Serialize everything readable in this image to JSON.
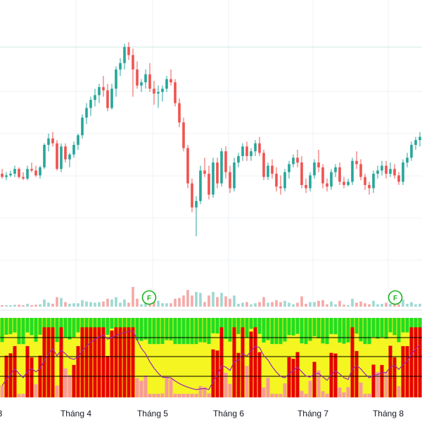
{
  "colors": {
    "up": "#26a69a",
    "down": "#ef5350",
    "up_volume": "#9ed8d2",
    "down_volume": "#f5a9a7",
    "grid": "#eef1f5",
    "marker": "#19b31f",
    "osc_green": "#22dd22",
    "osc_yellow": "#f5f522",
    "osc_red": "#e60000",
    "osc_pink": "#f79a9a",
    "osc_line": "#9b27b0",
    "axis_text": "#131722"
  },
  "x_axis": {
    "labels": [
      "3",
      "Tháng 4",
      "Tháng 5",
      "Tháng 6",
      "Tháng 7",
      "Tháng 8"
    ]
  },
  "markers": {
    "label": "F"
  },
  "chart_data": {
    "type": "candlestick",
    "note_units": "relative price levels (no price axis visible)",
    "candles": [
      [
        69,
        72,
        66,
        67
      ],
      [
        67,
        70,
        65,
        68
      ],
      [
        68,
        71,
        67,
        69
      ],
      [
        69,
        74,
        67,
        72
      ],
      [
        72,
        73,
        66,
        67
      ],
      [
        67,
        70,
        65,
        66
      ],
      [
        66,
        74,
        65,
        72
      ],
      [
        72,
        76,
        70,
        71
      ],
      [
        71,
        74,
        67,
        68
      ],
      [
        68,
        74,
        66,
        73
      ],
      [
        73,
        88,
        72,
        87
      ],
      [
        87,
        94,
        83,
        91
      ],
      [
        91,
        95,
        86,
        88
      ],
      [
        88,
        90,
        71,
        72
      ],
      [
        72,
        88,
        70,
        86
      ],
      [
        86,
        88,
        76,
        78
      ],
      [
        78,
        82,
        73,
        81
      ],
      [
        81,
        89,
        79,
        87
      ],
      [
        87,
        94,
        84,
        93
      ],
      [
        93,
        106,
        91,
        104
      ],
      [
        104,
        113,
        100,
        110
      ],
      [
        110,
        117,
        105,
        115
      ],
      [
        115,
        122,
        111,
        118
      ],
      [
        118,
        125,
        113,
        123
      ],
      [
        123,
        130,
        117,
        121
      ],
      [
        121,
        125,
        108,
        110
      ],
      [
        110,
        125,
        109,
        122
      ],
      [
        122,
        136,
        117,
        134
      ],
      [
        134,
        141,
        130,
        138
      ],
      [
        138,
        150,
        134,
        148
      ],
      [
        148,
        151,
        140,
        143
      ],
      [
        143,
        147,
        117,
        134
      ],
      [
        134,
        139,
        122,
        124
      ],
      [
        124,
        128,
        120,
        126
      ],
      [
        126,
        134,
        122,
        131
      ],
      [
        131,
        138,
        120,
        122
      ],
      [
        122,
        127,
        112,
        119
      ],
      [
        119,
        124,
        110,
        120
      ],
      [
        120,
        124,
        114,
        122
      ],
      [
        122,
        130,
        120,
        128
      ],
      [
        128,
        134,
        124,
        126
      ],
      [
        126,
        128,
        111,
        113
      ],
      [
        113,
        116,
        98,
        101
      ],
      [
        101,
        104,
        83,
        85
      ],
      [
        85,
        87,
        60,
        63
      ],
      [
        63,
        66,
        45,
        48
      ],
      [
        48,
        55,
        30,
        52
      ],
      [
        52,
        74,
        50,
        71
      ],
      [
        71,
        79,
        67,
        69
      ],
      [
        69,
        74,
        53,
        56
      ],
      [
        56,
        79,
        54,
        76
      ],
      [
        76,
        79,
        60,
        63
      ],
      [
        63,
        85,
        61,
        83
      ],
      [
        83,
        86,
        66,
        70
      ],
      [
        70,
        74,
        57,
        60
      ],
      [
        60,
        79,
        58,
        76
      ],
      [
        76,
        82,
        73,
        80
      ],
      [
        80,
        88,
        77,
        86
      ],
      [
        86,
        89,
        77,
        80
      ],
      [
        80,
        85,
        77,
        83
      ],
      [
        83,
        90,
        80,
        88
      ],
      [
        88,
        92,
        80,
        82
      ],
      [
        82,
        84,
        65,
        67
      ],
      [
        67,
        76,
        65,
        74
      ],
      [
        74,
        78,
        66,
        69
      ],
      [
        69,
        73,
        58,
        61
      ],
      [
        61,
        68,
        56,
        60
      ],
      [
        60,
        72,
        58,
        70
      ],
      [
        70,
        77,
        66,
        75
      ],
      [
        75,
        81,
        73,
        79
      ],
      [
        79,
        84,
        73,
        76
      ],
      [
        76,
        80,
        60,
        62
      ],
      [
        62,
        66,
        57,
        60
      ],
      [
        60,
        70,
        58,
        68
      ],
      [
        68,
        78,
        66,
        76
      ],
      [
        76,
        84,
        70,
        73
      ],
      [
        73,
        75,
        60,
        63
      ],
      [
        63,
        66,
        58,
        61
      ],
      [
        61,
        72,
        59,
        70
      ],
      [
        70,
        75,
        67,
        73
      ],
      [
        73,
        76,
        62,
        64
      ],
      [
        64,
        67,
        60,
        62
      ],
      [
        62,
        66,
        61,
        64
      ],
      [
        64,
        79,
        62,
        77
      ],
      [
        77,
        83,
        72,
        75
      ],
      [
        75,
        78,
        65,
        67
      ],
      [
        67,
        69,
        59,
        62
      ],
      [
        62,
        64,
        56,
        60
      ],
      [
        60,
        71,
        57,
        69
      ],
      [
        69,
        74,
        66,
        71
      ],
      [
        71,
        77,
        68,
        74
      ],
      [
        74,
        77,
        66,
        69
      ],
      [
        69,
        76,
        67,
        72
      ],
      [
        72,
        75,
        66,
        68
      ],
      [
        68,
        70,
        62,
        64
      ],
      [
        64,
        78,
        62,
        76
      ],
      [
        76,
        82,
        73,
        79
      ],
      [
        79,
        89,
        77,
        87
      ],
      [
        87,
        92,
        84,
        90
      ],
      [
        90,
        95,
        86,
        92
      ]
    ]
  }
}
